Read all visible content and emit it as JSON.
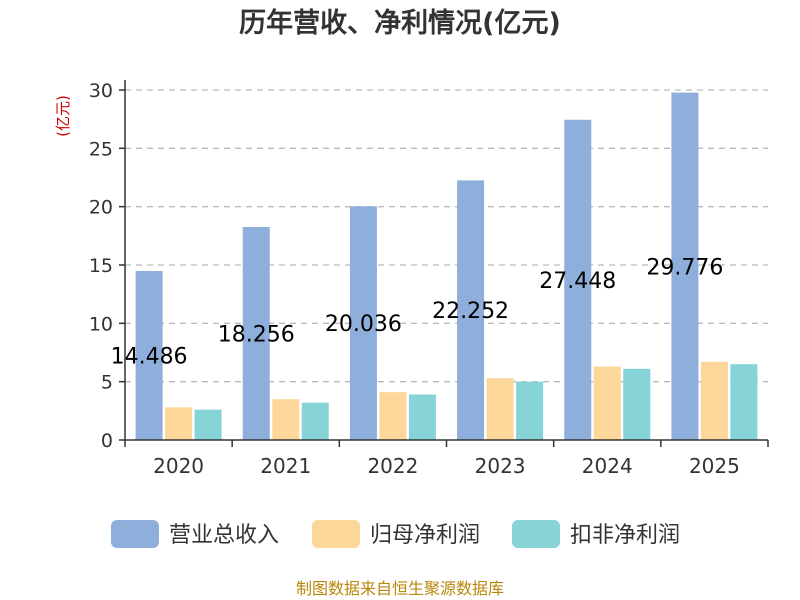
{
  "chart_data": {
    "type": "bar",
    "title": "历年营收、净利情况(亿元)",
    "ylabel": "(亿元)",
    "categories": [
      "2020",
      "2021",
      "2022",
      "2023",
      "2024",
      "2025"
    ],
    "series": [
      {
        "name": "营业总收入",
        "color": "#8eaedb",
        "values": [
          14.486,
          18.256,
          20.036,
          22.252,
          27.448,
          29.776
        ]
      },
      {
        "name": "归母净利润",
        "color": "#fdd79a",
        "values": [
          2.8,
          3.5,
          4.1,
          5.3,
          6.3,
          6.7
        ]
      },
      {
        "name": "扣非净利润",
        "color": "#86d4d8",
        "values": [
          2.6,
          3.2,
          3.9,
          5.0,
          6.1,
          6.5
        ]
      }
    ],
    "data_labels": [
      "14.486",
      "18.256",
      "20.036",
      "22.252",
      "27.448",
      "29.776"
    ],
    "ylim": [
      0,
      30
    ],
    "yticks": [
      0,
      5,
      10,
      15,
      20,
      25,
      30
    ],
    "grid": true,
    "legend": "bottom"
  },
  "source": "制图数据来自恒生聚源数据库"
}
